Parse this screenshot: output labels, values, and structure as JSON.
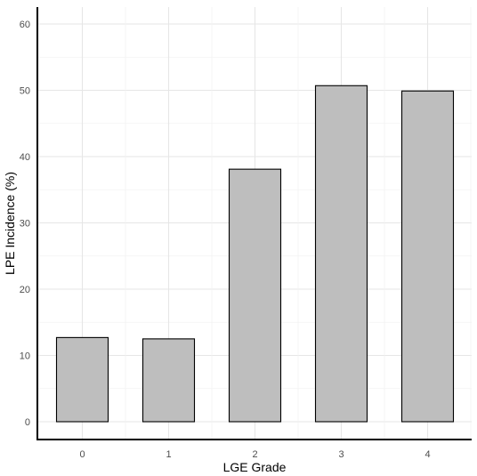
{
  "chart_data": {
    "type": "bar",
    "categories": [
      "0",
      "1",
      "2",
      "3",
      "4"
    ],
    "values": [
      12.7,
      12.5,
      38.1,
      50.7,
      49.9
    ],
    "xlabel": "LGE Grade",
    "ylabel": "LPE Incidence (%)",
    "ylim": [
      0,
      60
    ],
    "yticks": [
      "0",
      "10",
      "20",
      "30",
      "40",
      "50",
      "60"
    ],
    "grid": true,
    "colors": {
      "bar_fill": "#bebebe",
      "bar_stroke": "#000000",
      "grid_major": "#e6e6e6",
      "grid_minor": "#f2f2f2",
      "axis": "#000000"
    }
  }
}
